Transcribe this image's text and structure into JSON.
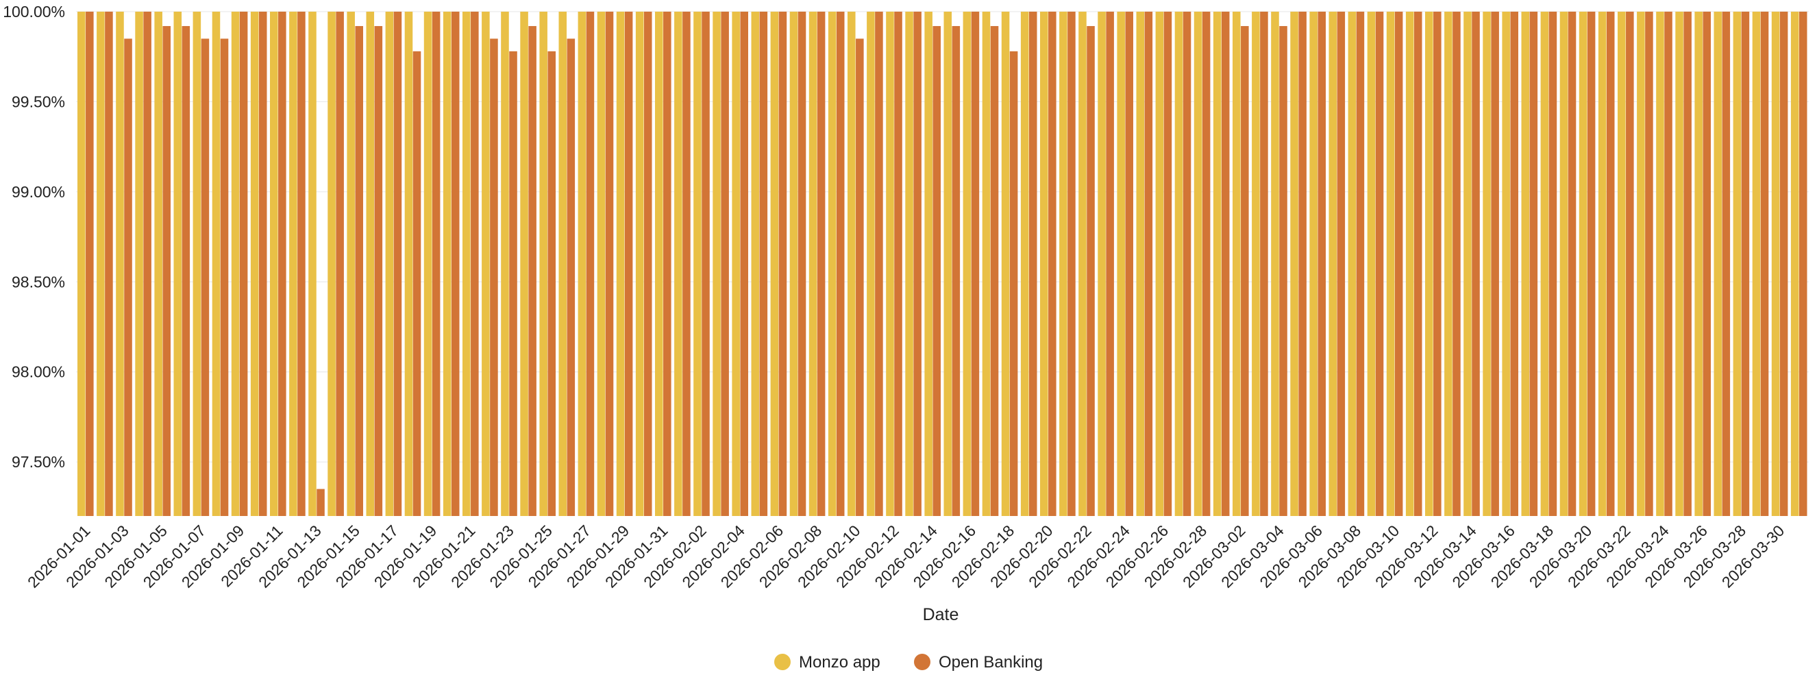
{
  "chart_data": {
    "type": "bar",
    "title": "",
    "xlabel": "Date",
    "ylabel": "",
    "ylim": [
      97.2,
      100.0
    ],
    "yticks": [
      "97.50%",
      "98.00%",
      "98.50%",
      "99.00%",
      "99.50%",
      "100.00%"
    ],
    "ytick_values": [
      97.5,
      98.0,
      98.5,
      99.0,
      99.5,
      100.0
    ],
    "grid": "horizontal",
    "legend_position": "bottom-center",
    "categories": [
      "2026-01-01",
      "2026-01-02",
      "2026-01-03",
      "2026-01-04",
      "2026-01-05",
      "2026-01-06",
      "2026-01-07",
      "2026-01-08",
      "2026-01-09",
      "2026-01-10",
      "2026-01-11",
      "2026-01-12",
      "2026-01-13",
      "2026-01-14",
      "2026-01-15",
      "2026-01-16",
      "2026-01-17",
      "2026-01-18",
      "2026-01-19",
      "2026-01-20",
      "2026-01-21",
      "2026-01-22",
      "2026-01-23",
      "2026-01-24",
      "2026-01-25",
      "2026-01-26",
      "2026-01-27",
      "2026-01-28",
      "2026-01-29",
      "2026-01-30",
      "2026-01-31",
      "2026-02-01",
      "2026-02-02",
      "2026-02-03",
      "2026-02-04",
      "2026-02-05",
      "2026-02-06",
      "2026-02-07",
      "2026-02-08",
      "2026-02-09",
      "2026-02-10",
      "2026-02-11",
      "2026-02-12",
      "2026-02-13",
      "2026-02-14",
      "2026-02-15",
      "2026-02-16",
      "2026-02-17",
      "2026-02-18",
      "2026-02-19",
      "2026-02-20",
      "2026-02-21",
      "2026-02-22",
      "2026-02-23",
      "2026-02-24",
      "2026-02-25",
      "2026-02-26",
      "2026-02-27",
      "2026-02-28",
      "2026-03-01",
      "2026-03-02",
      "2026-03-03",
      "2026-03-04",
      "2026-03-05",
      "2026-03-06",
      "2026-03-07",
      "2026-03-08",
      "2026-03-09",
      "2026-03-10",
      "2026-03-11",
      "2026-03-12",
      "2026-03-13",
      "2026-03-14",
      "2026-03-15",
      "2026-03-16",
      "2026-03-17",
      "2026-03-18",
      "2026-03-19",
      "2026-03-20",
      "2026-03-21",
      "2026-03-22",
      "2026-03-23",
      "2026-03-24",
      "2026-03-25",
      "2026-03-26",
      "2026-03-27",
      "2026-03-28",
      "2026-03-29",
      "2026-03-30",
      "2026-03-31"
    ],
    "series": [
      {
        "name": "Monzo app",
        "color": "#E9C046",
        "values": [
          100,
          100,
          100,
          100,
          100,
          100,
          100,
          100,
          100,
          100,
          100,
          100,
          100,
          100,
          100,
          100,
          100,
          100,
          100,
          100,
          100,
          100,
          100,
          100,
          100,
          100,
          100,
          100,
          100,
          100,
          100,
          100,
          100,
          100,
          100,
          100,
          100,
          100,
          100,
          100,
          100,
          100,
          100,
          100,
          100,
          100,
          100,
          100,
          100,
          100,
          100,
          100,
          100,
          100,
          100,
          100,
          100,
          100,
          100,
          100,
          100,
          100,
          100,
          100,
          100,
          100,
          100,
          100,
          100,
          100,
          100,
          100,
          100,
          100,
          100,
          100,
          100,
          100,
          100,
          100,
          100,
          100,
          100,
          100,
          100,
          100,
          100,
          100,
          100,
          100
        ]
      },
      {
        "name": "Open Banking",
        "color": "#D27536",
        "values": [
          100,
          100,
          99.85,
          100,
          99.92,
          99.92,
          99.85,
          99.85,
          100,
          100,
          100,
          100,
          97.35,
          100,
          99.92,
          99.92,
          100,
          99.78,
          100,
          100,
          100,
          99.85,
          99.78,
          99.92,
          99.78,
          99.85,
          100,
          100,
          100,
          100,
          100,
          100,
          100,
          100,
          100,
          100,
          100,
          100,
          100,
          100,
          99.85,
          100,
          100,
          100,
          99.92,
          99.92,
          100,
          99.92,
          99.78,
          100,
          100,
          100,
          99.92,
          100,
          100,
          100,
          100,
          100,
          100,
          100,
          99.92,
          100,
          99.92,
          100,
          100,
          100,
          100,
          100,
          100,
          100,
          100,
          100,
          100,
          100,
          100,
          100,
          100,
          100,
          100,
          100,
          100,
          100,
          100,
          100,
          100,
          100,
          100,
          100,
          100,
          100
        ]
      }
    ]
  }
}
